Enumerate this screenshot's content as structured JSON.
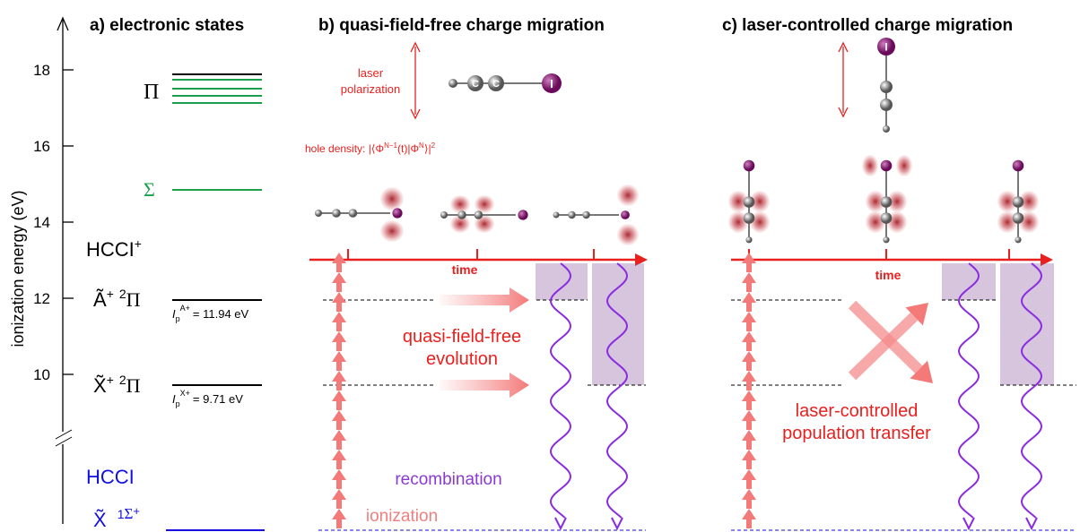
{
  "atoms": {
    "carbon": "C",
    "iodine": "I"
  },
  "panel_a": {
    "title": "a) electronic states",
    "axis_label": "ionization energy (eV)",
    "ticks": [
      10,
      12,
      14,
      16,
      18
    ],
    "pi": "Π",
    "sigma": "Σ",
    "cation": {
      "name": "HCCI",
      "charge": "+"
    },
    "state_a": {
      "symbol": "Ã",
      "charge": "+",
      "multiplicity": "2",
      "term": "Π",
      "ip_symbol": "I",
      "ip_sub": "p",
      "ip_sup": "A+",
      "ip_value": "= 11.94 eV"
    },
    "state_x": {
      "symbol": "X̃",
      "charge": "+",
      "multiplicity": "2",
      "term": "Π",
      "ip_symbol": "I",
      "ip_sub": "p",
      "ip_sup": "X+",
      "ip_value": "= 9.71 eV"
    },
    "neutral": {
      "name": "HCCI",
      "symbol": "X̃",
      "multiplicity": "1",
      "term": "Σ",
      "term_sup": "+"
    }
  },
  "panel_b": {
    "title": "b) quasi-field-free charge migration",
    "laser": [
      "laser",
      "polarization"
    ],
    "hole_density": {
      "prefix": "hole density: |⟨Φ",
      "sup1": "N−1",
      "mid": "(t)|Φ",
      "sup2": "N",
      "end": "⟩|",
      "sup3": "2"
    },
    "time": "time",
    "evolution": [
      "quasi-field-free",
      "evolution"
    ],
    "recombination": "recombination",
    "ionization": "ionization"
  },
  "panel_c": {
    "title": "c) laser-controlled charge migration",
    "time": "time",
    "transfer": [
      "laser-controlled",
      "population transfer"
    ]
  }
}
